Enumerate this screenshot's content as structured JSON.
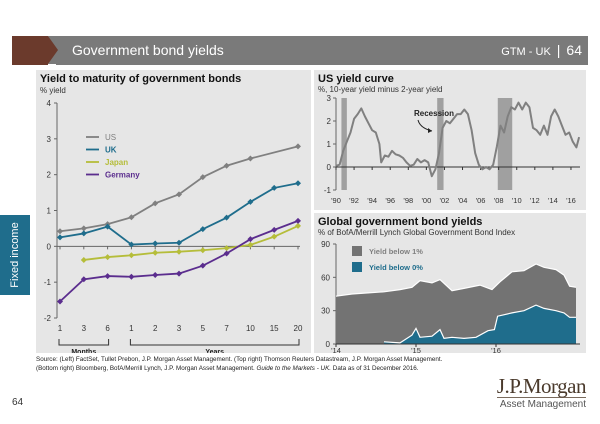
{
  "header": {
    "title": "Government bond yields",
    "code": "GTM - UK",
    "separator": "|",
    "page": "64"
  },
  "sidebar_tab": "Fixed income",
  "colors": {
    "brand_brown": "#6b3a2c",
    "header_gray": "#7a7a7a",
    "panel_bg": "#e6e6e6",
    "us": "#808080",
    "uk": "#1f6d8c",
    "japan": "#b5bd3a",
    "germany": "#5b2d8e",
    "recession": "#a0a0a0",
    "yield_below_1": "#737373",
    "yield_below_0": "#1f6d8c"
  },
  "chart_data": [
    {
      "type": "line",
      "title": "Yield to maturity of government bonds",
      "ylabel": "% yield",
      "xlabel": "",
      "ylim": [
        -2,
        4
      ],
      "yticks": [
        -2,
        -1,
        0,
        1,
        2,
        3,
        4
      ],
      "categories": [
        "1",
        "3",
        "6",
        "1",
        "2",
        "3",
        "5",
        "7",
        "10",
        "15",
        "20"
      ],
      "groups": [
        {
          "label": "Months",
          "from": 0,
          "to": 2
        },
        {
          "label": "Years",
          "from": 3,
          "to": 10
        }
      ],
      "legend_position": "top-left",
      "series": [
        {
          "name": "US",
          "color_key": "us",
          "values": [
            0.42,
            0.5,
            0.62,
            0.81,
            1.2,
            1.45,
            1.93,
            2.25,
            2.45,
            null,
            2.79
          ]
        },
        {
          "name": "UK",
          "color_key": "uk",
          "values": [
            0.25,
            0.36,
            0.55,
            0.05,
            0.08,
            0.1,
            0.48,
            0.8,
            1.24,
            1.63,
            1.76
          ]
        },
        {
          "name": "Japan",
          "color_key": "japan",
          "values": [
            null,
            -0.38,
            -0.3,
            -0.25,
            -0.18,
            -0.15,
            -0.11,
            -0.05,
            0.04,
            0.27,
            0.57
          ]
        },
        {
          "name": "Germany",
          "color_key": "germany",
          "values": [
            -1.54,
            -0.92,
            -0.83,
            -0.85,
            -0.8,
            -0.76,
            -0.54,
            -0.2,
            0.2,
            0.46,
            0.71
          ]
        }
      ]
    },
    {
      "type": "line",
      "title": "US yield curve",
      "ylabel": "%, 10-year yield minus 2-year yield",
      "ylim": [
        -1,
        3
      ],
      "yticks": [
        -1,
        0,
        1,
        2,
        3
      ],
      "xlim": [
        1990,
        2017
      ],
      "xticks": [
        "'90",
        "'92",
        "'94",
        "'96",
        "'98",
        "'00",
        "'02",
        "'04",
        "'06",
        "'08",
        "'10",
        "'12",
        "'14",
        "'16"
      ],
      "annotation": "Recession",
      "recessions": [
        [
          1990.6,
          1991.2
        ],
        [
          2001.2,
          2001.9
        ],
        [
          2007.9,
          2009.5
        ]
      ],
      "series": [
        {
          "name": "10y-2y spread",
          "x": [
            1990.0,
            1990.4,
            1990.8,
            1991.2,
            1991.6,
            1992.0,
            1992.4,
            1992.8,
            1993.2,
            1993.6,
            1994.0,
            1994.4,
            1994.8,
            1995.0,
            1995.4,
            1995.8,
            1996.2,
            1996.6,
            1997.0,
            1997.4,
            1997.8,
            1998.2,
            1998.6,
            1999.0,
            1999.4,
            1999.8,
            2000.2,
            2000.6,
            2001.0,
            2001.4,
            2001.8,
            2002.2,
            2002.6,
            2003.0,
            2003.4,
            2003.8,
            2004.2,
            2004.6,
            2005.0,
            2005.4,
            2005.8,
            2006.2,
            2006.6,
            2007.0,
            2007.4,
            2007.8,
            2008.2,
            2008.6,
            2009.0,
            2009.4,
            2009.8,
            2010.2,
            2010.6,
            2011.0,
            2011.4,
            2011.8,
            2012.2,
            2012.6,
            2013.0,
            2013.4,
            2013.8,
            2014.2,
            2014.6,
            2015.0,
            2015.4,
            2015.8,
            2016.2,
            2016.6,
            2016.9
          ],
          "values": [
            0.05,
            0.1,
            0.7,
            1.1,
            1.5,
            2.1,
            2.3,
            2.55,
            2.2,
            1.9,
            1.6,
            1.5,
            1.0,
            0.2,
            0.5,
            0.45,
            0.7,
            0.55,
            0.5,
            0.4,
            0.2,
            0.05,
            0.1,
            0.35,
            0.2,
            0.3,
            0.2,
            -0.4,
            -0.1,
            0.6,
            1.7,
            2.0,
            1.9,
            2.1,
            2.3,
            2.3,
            2.5,
            2.3,
            1.6,
            0.6,
            0.1,
            -0.1,
            0.0,
            -0.1,
            0.1,
            0.9,
            1.8,
            1.5,
            2.2,
            2.6,
            2.5,
            2.8,
            2.5,
            2.8,
            2.6,
            1.7,
            1.6,
            1.4,
            1.8,
            1.4,
            2.2,
            2.5,
            2.2,
            1.8,
            1.4,
            1.5,
            1.1,
            0.85,
            1.3
          ]
        }
      ]
    },
    {
      "type": "area",
      "title": "Global government bond yields",
      "ylabel": "% of BofA/Merrill Lynch Global Government Bond Index",
      "ylim": [
        0,
        90
      ],
      "yticks": [
        0,
        30,
        60,
        90
      ],
      "xlim": [
        2014.0,
        2017.0
      ],
      "xticks": [
        "'14",
        "'15",
        "'16"
      ],
      "legend_position": "top-left",
      "series": [
        {
          "name": "Yield below 1%",
          "color_key": "yield_below_1",
          "x": [
            2014.0,
            2014.2,
            2014.4,
            2014.6,
            2014.8,
            2014.95,
            2015.05,
            2015.2,
            2015.3,
            2015.45,
            2015.6,
            2015.8,
            2015.95,
            2016.05,
            2016.2,
            2016.35,
            2016.5,
            2016.6,
            2016.75,
            2016.85,
            2016.92,
            2017.0
          ],
          "values": [
            43,
            45,
            46,
            47,
            49,
            51,
            57,
            55,
            58,
            48,
            50,
            53,
            49,
            56,
            65,
            66,
            72,
            69,
            67,
            62,
            52,
            51
          ]
        },
        {
          "name": "Yield below 0%",
          "color_key": "yield_below_0",
          "x": [
            2014.6,
            2014.8,
            2014.95,
            2015.0,
            2015.05,
            2015.2,
            2015.3,
            2015.35,
            2015.45,
            2015.6,
            2015.75,
            2015.9,
            2015.98,
            2016.02,
            2016.2,
            2016.35,
            2016.5,
            2016.6,
            2016.75,
            2016.85,
            2016.92,
            2017.0
          ],
          "values": [
            2,
            1,
            8,
            14,
            6,
            7,
            13,
            5,
            6,
            5,
            6,
            12,
            13,
            25,
            28,
            30,
            35,
            32,
            30,
            28,
            24,
            24
          ]
        }
      ]
    }
  ],
  "source_line1": "Source: (Left) FactSet, Tullet Prebon, J.P. Morgan Asset Management. (Top right) Thomson Reuters Datastream, J.P. Morgan Asset Management.",
  "source_line2_a": "(Bottom right) Bloomberg, BofA/Merrill Lynch, J.P. Morgan Asset Management. ",
  "source_line2_italic": "Guide to the Markets - UK.",
  "source_line2_b": " Data as of 31 December 2016.",
  "footer": {
    "page_number": "64",
    "logo_brand": "J.P.Morgan",
    "logo_sub": "Asset Management"
  }
}
